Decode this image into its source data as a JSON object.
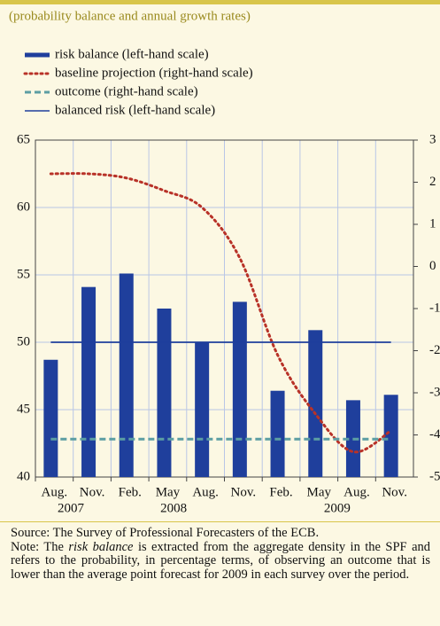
{
  "chart_data": {
    "type": "bar",
    "subtitle": "(probability balance and annual growth rates)",
    "categories": [
      "Aug.",
      "Nov.",
      "Feb.",
      "May",
      "Aug.",
      "Nov.",
      "Feb.",
      "May",
      "Aug.",
      "Nov."
    ],
    "years": [
      "2007",
      "2008",
      "2009"
    ],
    "series": [
      {
        "name": "risk balance (left-hand scale)",
        "type": "bar",
        "color": "#1f3f9c",
        "axis": "y",
        "values": [
          48.7,
          54.1,
          55.1,
          52.5,
          50.0,
          53.0,
          46.4,
          50.9,
          45.7,
          46.1
        ]
      },
      {
        "name": "baseline projection (right-hand scale)",
        "type": "dotted",
        "color": "#b83228",
        "axis": "y2",
        "values": [
          2.2,
          2.2,
          2.1,
          1.8,
          1.4,
          0.2,
          -2.1,
          -3.5,
          -4.4,
          -3.9
        ]
      },
      {
        "name": "outcome (right-hand scale)",
        "type": "dashed",
        "color": "#5c9ea3",
        "axis": "y2",
        "values": [
          -4.1,
          -4.1,
          -4.1,
          -4.1,
          -4.1,
          -4.1,
          -4.1,
          -4.1,
          -4.1,
          -4.1
        ]
      },
      {
        "name": "balanced risk (left-hand scale)",
        "type": "solid",
        "color": "#1f3f9c",
        "axis": "y",
        "values": [
          50,
          50,
          50,
          50,
          50,
          50,
          50,
          50,
          50,
          50
        ]
      }
    ],
    "ylim": [
      40,
      65
    ],
    "yticks": [
      40,
      45,
      50,
      55,
      60,
      65
    ],
    "y2lim": [
      -5,
      3
    ],
    "y2ticks": [
      -5,
      -4,
      -3,
      -2,
      -1,
      0,
      1,
      2,
      3
    ],
    "grid": true,
    "source": "Source: The Survey of Professional Forecasters of the ECB.",
    "note": [
      "Note: The ",
      "risk balance",
      " is extracted from the aggregate density in the SPF and refers to the probability, in percentage terms, of observing an outcome that is lower than the average point forecast for 2009 in each survey over the period."
    ]
  }
}
